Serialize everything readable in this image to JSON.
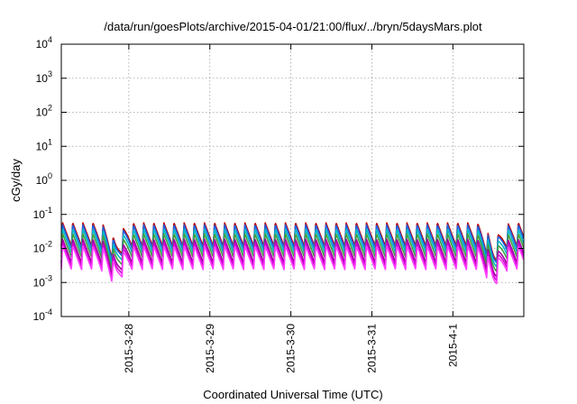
{
  "chart_data": {
    "type": "line",
    "title": "/data/run/goesPlots/archive/2015-04-01/21:00/flux/../bryn/5daysMars.plot",
    "xlabel": "Coordinated Universal Time (UTC)",
    "ylabel": "cGy/day",
    "x_range": [
      "2015-03-27T04:00",
      "2015-04-01T21:00"
    ],
    "y_scale": "log",
    "ylim": [
      0.0001,
      10000
    ],
    "grid": true,
    "x_ticks": [
      {
        "value": "2015-03-28T00:00",
        "label": "2015-3-28"
      },
      {
        "value": "2015-03-29T00:00",
        "label": "2015-3-29"
      },
      {
        "value": "2015-03-30T00:00",
        "label": "2015-3-30"
      },
      {
        "value": "2015-03-31T00:00",
        "label": "2015-3-31"
      },
      {
        "value": "2015-04-01T00:00",
        "label": "2015-4-1"
      }
    ],
    "y_ticks": [
      {
        "value": 0.0001,
        "base": "10",
        "exp": "-4"
      },
      {
        "value": 0.001,
        "base": "10",
        "exp": "-3"
      },
      {
        "value": 0.01,
        "base": "10",
        "exp": "-2"
      },
      {
        "value": 0.1,
        "base": "10",
        "exp": "-1"
      },
      {
        "value": 1,
        "base": "10",
        "exp": "0"
      },
      {
        "value": 10,
        "base": "10",
        "exp": "1"
      },
      {
        "value": 100,
        "base": "10",
        "exp": "2"
      },
      {
        "value": 1000,
        "base": "10",
        "exp": "3"
      },
      {
        "value": 10000,
        "base": "10",
        "exp": "4"
      }
    ],
    "pattern": {
      "period_hours": 3,
      "peak_value": 0.05,
      "trough_value": 0.01,
      "dips": [
        {
          "time": "2015-03-27T20:00",
          "factor": 0.35
        },
        {
          "time": "2015-04-01T12:00",
          "factor": 0.3
        }
      ]
    },
    "series": [
      {
        "color": "#c00000",
        "scale": 1.15
      },
      {
        "color": "#1f5fe0",
        "scale": 1.0
      },
      {
        "color": "#00b8c8",
        "scale": 0.75
      },
      {
        "color": "#40a040",
        "scale": 0.55
      },
      {
        "color": "#a000a0",
        "scale": 0.38
      },
      {
        "color": "#d000d0",
        "scale": 0.3
      },
      {
        "color": "#ff40ff",
        "scale": 0.24
      }
    ]
  }
}
